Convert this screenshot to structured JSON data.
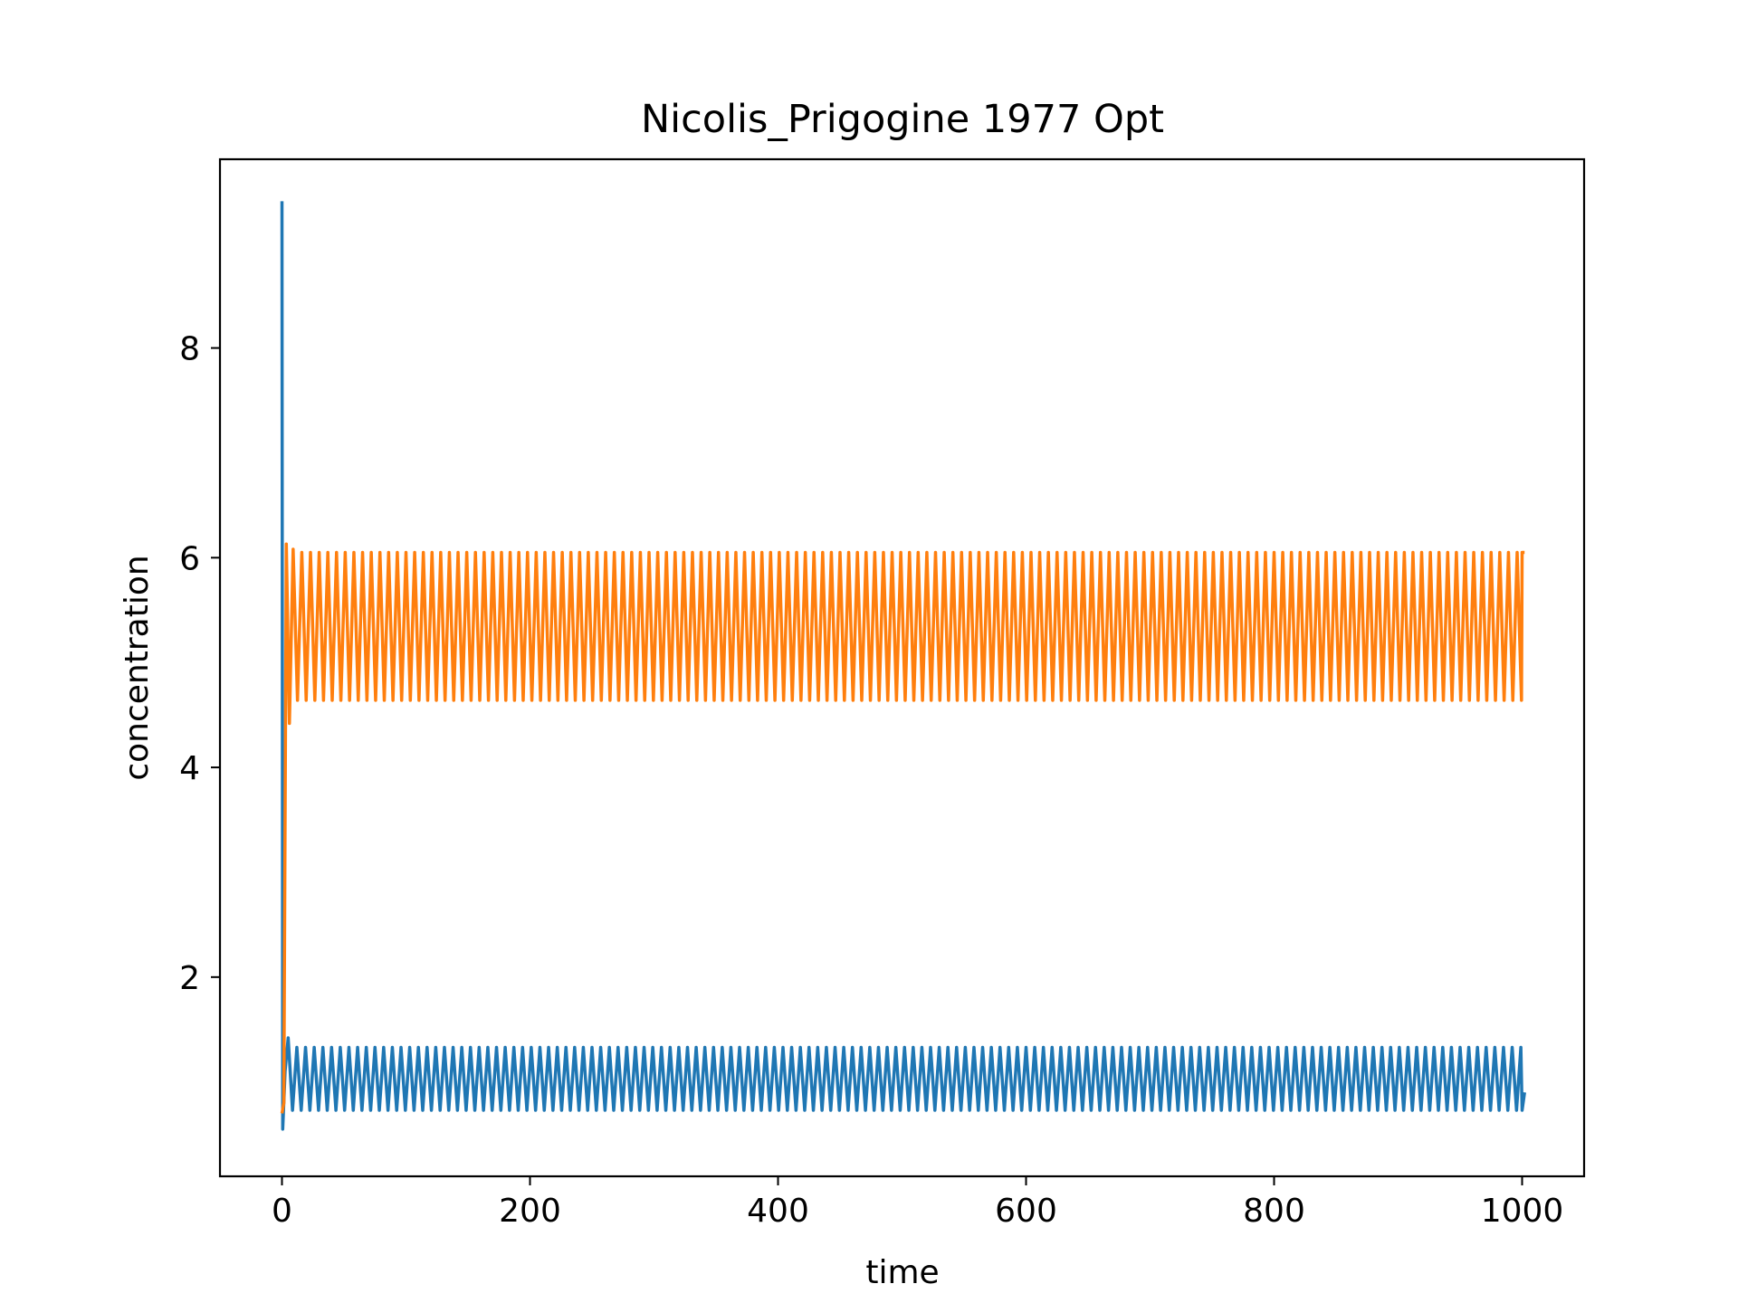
{
  "chart_data": {
    "type": "line",
    "title": "Nicolis_Prigogine 1977 Opt",
    "xlabel": "time",
    "ylabel": "concentration",
    "xlim": [
      -50,
      1050
    ],
    "ylim": [
      0.1,
      9.8
    ],
    "xticks": [
      0,
      200,
      400,
      600,
      800,
      1000
    ],
    "yticks": [
      2,
      4,
      6,
      8
    ],
    "grid": false,
    "legend": "none",
    "series": [
      {
        "color": "#1f77b4",
        "t_end": 1000,
        "initial": {
          "t": 0,
          "y": 9.4
        },
        "transient_min": 0.55,
        "steady_min": 0.73,
        "steady_max": 1.33,
        "end_value": 0.9
      },
      {
        "color": "#ff7f0e",
        "t_end": 1000,
        "initial": {
          "t": 0,
          "y": 0.7
        },
        "transient_max": 6.13,
        "transient_min": 4.42,
        "steady_min": 4.64,
        "steady_max": 6.05,
        "end_value": 6.05
      }
    ]
  }
}
